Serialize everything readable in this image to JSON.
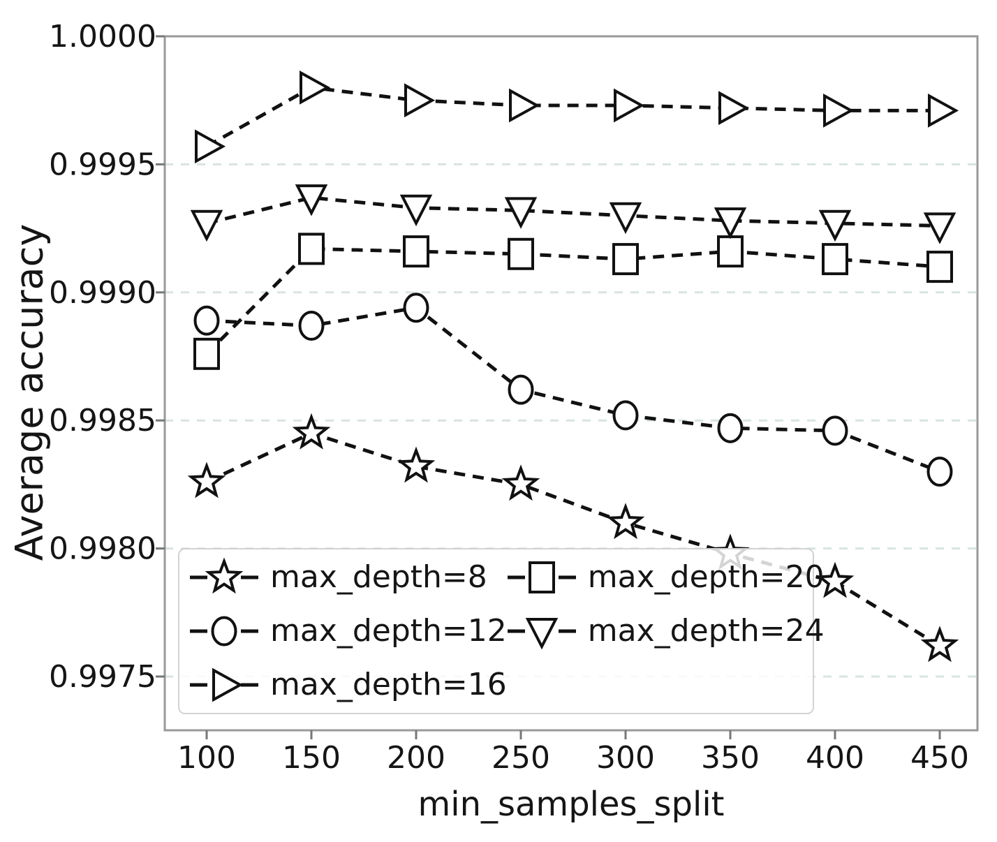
{
  "figure": {
    "x_ticks": [
      "100",
      "150",
      "200",
      "250",
      "300",
      "350",
      "400",
      "450"
    ],
    "x_tick_values": [
      100,
      150,
      200,
      250,
      300,
      350,
      400,
      450
    ],
    "y_ticks": [
      "1.0000",
      "0.9995",
      "0.9990",
      "0.9985",
      "0.9980",
      "0.9975"
    ],
    "y_tick_values": [
      1.0,
      0.9995,
      0.999,
      0.9985,
      0.998,
      0.9975
    ],
    "spine_color": "#999999",
    "text_color": "#151515"
  },
  "chart_data": {
    "type": "line",
    "title": "",
    "xlabel": "min_samples_split",
    "ylabel": "Average accuracy",
    "x": [
      100,
      150,
      200,
      250,
      300,
      350,
      400,
      450
    ],
    "series": [
      {
        "name": "max_depth=8",
        "marker": "star",
        "values": [
          0.99826,
          0.99845,
          0.99832,
          0.99825,
          0.9981,
          0.99798,
          0.99787,
          0.99762
        ]
      },
      {
        "name": "max_depth=12",
        "marker": "circle",
        "values": [
          0.99889,
          0.99887,
          0.99894,
          0.99862,
          0.99852,
          0.99847,
          0.99846,
          0.9983
        ]
      },
      {
        "name": "max_depth=16",
        "marker": "triangle-right",
        "values": [
          0.99957,
          0.9998,
          0.99975,
          0.99973,
          0.99973,
          0.99972,
          0.99971,
          0.99971
        ]
      },
      {
        "name": "max_depth=20",
        "marker": "square",
        "values": [
          0.99876,
          0.99917,
          0.99916,
          0.99915,
          0.99913,
          0.99916,
          0.99913,
          0.9991
        ]
      },
      {
        "name": "max_depth=24",
        "marker": "triangle-down",
        "values": [
          0.99927,
          0.99937,
          0.99933,
          0.99932,
          0.9993,
          0.99928,
          0.99927,
          0.99926
        ]
      }
    ],
    "xlim": [
      80,
      468
    ],
    "ylim": [
      0.99729,
      1.0
    ],
    "grid": true,
    "grid_color": "#d9e4e0",
    "line_color": "#111111",
    "line_style": "dashed",
    "legend": {
      "position": "lower-left",
      "columns": 2,
      "order": "column-major"
    }
  }
}
